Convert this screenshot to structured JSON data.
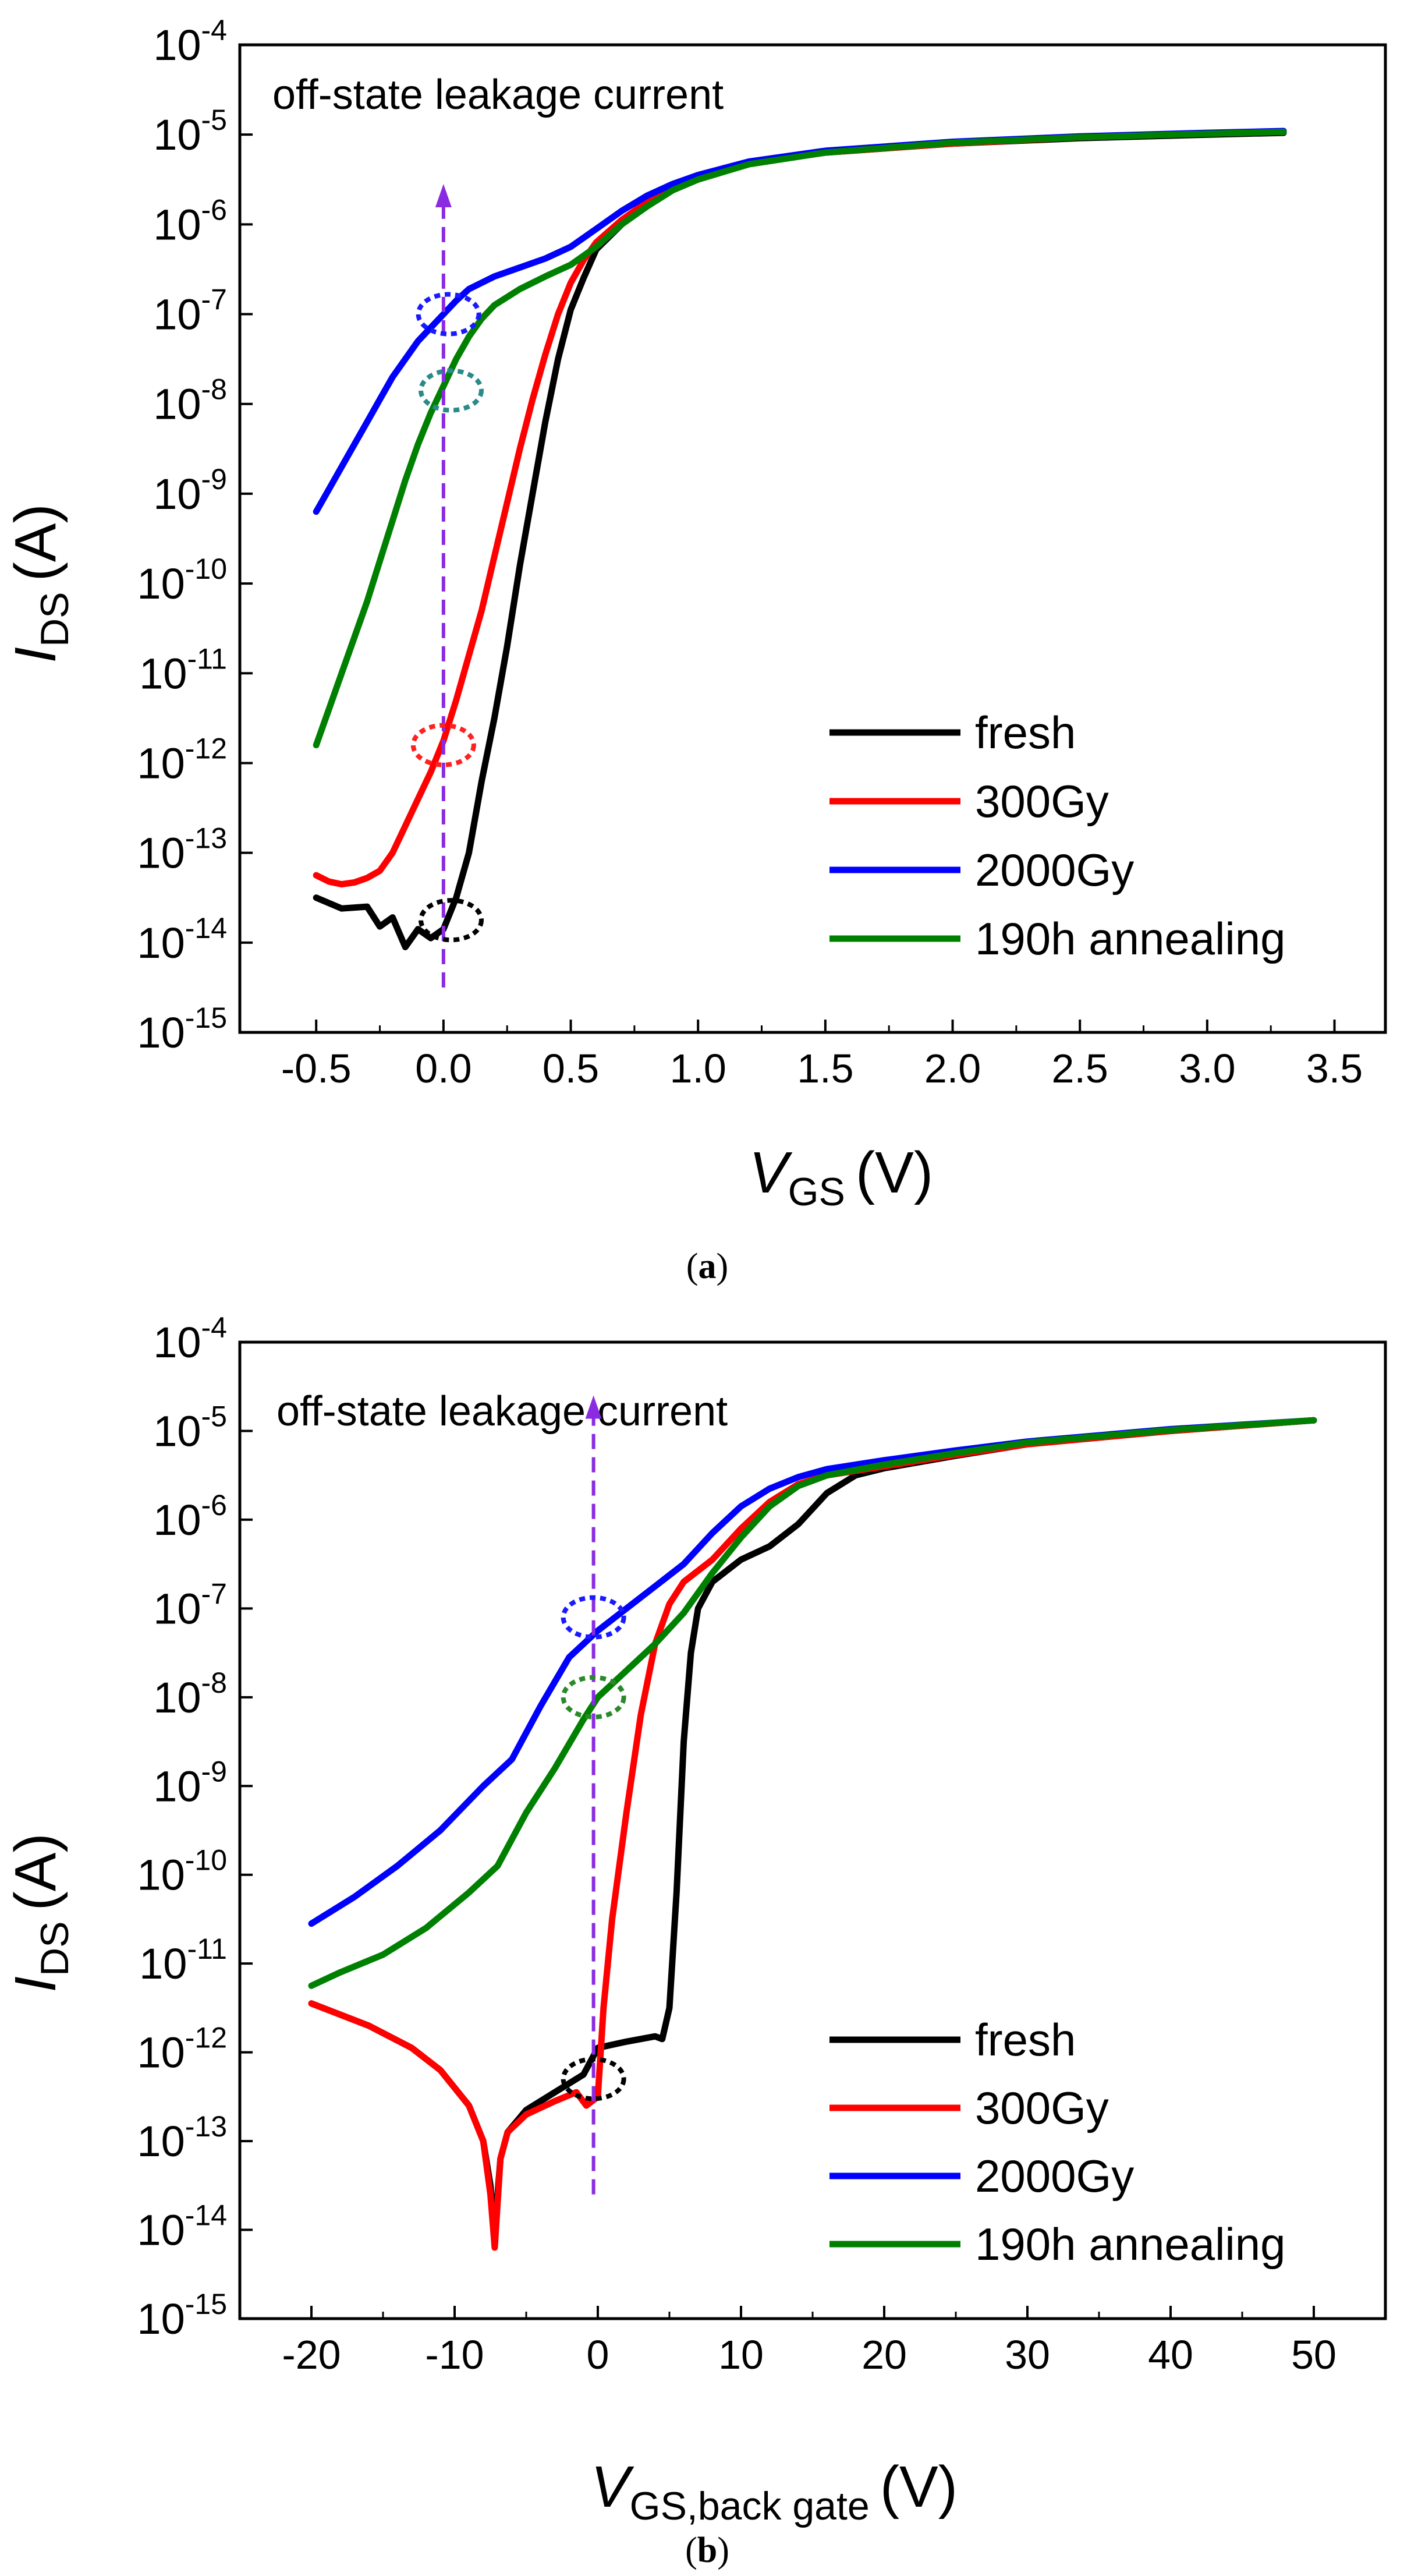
{
  "chart_data": [
    {
      "type": "line",
      "panel": "a",
      "caption": "(a)",
      "caption_letter": "a",
      "xlabel": {
        "main": "V",
        "sub": "GS",
        "unit": "(V)"
      },
      "ylabel": {
        "main": "I",
        "sub": "DS",
        "unit": "(A)"
      },
      "xlim": [
        -0.8,
        3.7
      ],
      "ylim_exp": [
        -15,
        -4
      ],
      "x_ticks": [
        -0.5,
        0.0,
        0.5,
        1.0,
        1.5,
        2.0,
        2.5,
        3.0,
        3.5
      ],
      "x_tick_labels": [
        "-0.5",
        "0.0",
        "0.5",
        "1.0",
        "1.5",
        "2.0",
        "2.5",
        "3.0",
        "3.5"
      ],
      "y_tick_exponents": [
        "-15",
        "-14",
        "-13",
        "-12",
        "-11",
        "-10",
        "-9",
        "-8",
        "-7",
        "-6",
        "-5",
        "-4"
      ],
      "annotation": {
        "text": "off-state leakage current",
        "color": "#8a2be2",
        "arrow_x": 0.0,
        "arrow_from_exp": -14.5,
        "arrow_to_exp": -5.55
      },
      "markers": [
        {
          "series": "2000Gy",
          "x": 0.02,
          "exp": -7.0,
          "color": "#1a1aff"
        },
        {
          "series": "190h annealing",
          "x": 0.03,
          "exp": -7.85,
          "color": "#2a8a8a"
        },
        {
          "series": "300Gy",
          "x": 0.0,
          "exp": -11.8,
          "color": "#ff2020"
        },
        {
          "series": "fresh",
          "x": 0.03,
          "exp": -13.75,
          "color": "#000000"
        }
      ],
      "legend_position": "bottom-right",
      "series": [
        {
          "name": "fresh",
          "color": "#000000",
          "points": [
            [
              -0.5,
              -13.5
            ],
            [
              -0.4,
              -13.62
            ],
            [
              -0.3,
              -13.6
            ],
            [
              -0.25,
              -13.82
            ],
            [
              -0.2,
              -13.72
            ],
            [
              -0.15,
              -14.05
            ],
            [
              -0.1,
              -13.85
            ],
            [
              -0.05,
              -13.95
            ],
            [
              0.0,
              -13.85
            ],
            [
              0.05,
              -13.5
            ],
            [
              0.1,
              -13.0
            ],
            [
              0.15,
              -12.2
            ],
            [
              0.2,
              -11.5
            ],
            [
              0.25,
              -10.7
            ],
            [
              0.3,
              -9.8
            ],
            [
              0.35,
              -9.0
            ],
            [
              0.4,
              -8.2
            ],
            [
              0.45,
              -7.5
            ],
            [
              0.5,
              -6.95
            ],
            [
              0.55,
              -6.6
            ],
            [
              0.6,
              -6.28
            ],
            [
              0.7,
              -6.0
            ],
            [
              0.8,
              -5.78
            ],
            [
              0.9,
              -5.6
            ],
            [
              1.0,
              -5.48
            ],
            [
              1.2,
              -5.32
            ],
            [
              1.5,
              -5.2
            ],
            [
              2.0,
              -5.1
            ],
            [
              2.5,
              -5.04
            ],
            [
              3.0,
              -5.0
            ],
            [
              3.3,
              -4.98
            ]
          ]
        },
        {
          "name": "300Gy",
          "color": "#ff0000",
          "points": [
            [
              -0.5,
              -13.25
            ],
            [
              -0.45,
              -13.32
            ],
            [
              -0.4,
              -13.35
            ],
            [
              -0.35,
              -13.33
            ],
            [
              -0.3,
              -13.28
            ],
            [
              -0.25,
              -13.2
            ],
            [
              -0.2,
              -13.0
            ],
            [
              -0.15,
              -12.7
            ],
            [
              -0.1,
              -12.4
            ],
            [
              -0.05,
              -12.1
            ],
            [
              0.0,
              -11.75
            ],
            [
              0.05,
              -11.3
            ],
            [
              0.1,
              -10.8
            ],
            [
              0.15,
              -10.3
            ],
            [
              0.2,
              -9.7
            ],
            [
              0.25,
              -9.1
            ],
            [
              0.3,
              -8.5
            ],
            [
              0.35,
              -7.95
            ],
            [
              0.4,
              -7.45
            ],
            [
              0.45,
              -7.0
            ],
            [
              0.5,
              -6.65
            ],
            [
              0.55,
              -6.4
            ],
            [
              0.6,
              -6.2
            ],
            [
              0.7,
              -5.95
            ],
            [
              0.8,
              -5.75
            ],
            [
              0.9,
              -5.6
            ],
            [
              1.0,
              -5.48
            ],
            [
              1.2,
              -5.32
            ],
            [
              1.5,
              -5.2
            ],
            [
              2.0,
              -5.1
            ],
            [
              2.5,
              -5.03
            ],
            [
              3.0,
              -4.99
            ],
            [
              3.3,
              -4.97
            ]
          ]
        },
        {
          "name": "2000Gy",
          "color": "#0000ff",
          "points": [
            [
              -0.5,
              -9.2
            ],
            [
              -0.45,
              -8.95
            ],
            [
              -0.4,
              -8.7
            ],
            [
              -0.35,
              -8.45
            ],
            [
              -0.3,
              -8.2
            ],
            [
              -0.25,
              -7.95
            ],
            [
              -0.2,
              -7.7
            ],
            [
              -0.15,
              -7.5
            ],
            [
              -0.1,
              -7.3
            ],
            [
              -0.05,
              -7.15
            ],
            [
              0.0,
              -7.0
            ],
            [
              0.05,
              -6.85
            ],
            [
              0.1,
              -6.72
            ],
            [
              0.2,
              -6.58
            ],
            [
              0.3,
              -6.48
            ],
            [
              0.4,
              -6.38
            ],
            [
              0.5,
              -6.25
            ],
            [
              0.6,
              -6.05
            ],
            [
              0.7,
              -5.85
            ],
            [
              0.8,
              -5.68
            ],
            [
              0.9,
              -5.55
            ],
            [
              1.0,
              -5.45
            ],
            [
              1.2,
              -5.3
            ],
            [
              1.5,
              -5.18
            ],
            [
              2.0,
              -5.08
            ],
            [
              2.5,
              -5.02
            ],
            [
              3.0,
              -4.98
            ],
            [
              3.3,
              -4.96
            ]
          ]
        },
        {
          "name": "190h annealing",
          "color": "#008000",
          "points": [
            [
              -0.5,
              -11.8
            ],
            [
              -0.45,
              -11.4
            ],
            [
              -0.4,
              -11.0
            ],
            [
              -0.35,
              -10.6
            ],
            [
              -0.3,
              -10.2
            ],
            [
              -0.25,
              -9.75
            ],
            [
              -0.2,
              -9.3
            ],
            [
              -0.15,
              -8.85
            ],
            [
              -0.1,
              -8.45
            ],
            [
              -0.05,
              -8.1
            ],
            [
              0.0,
              -7.8
            ],
            [
              0.05,
              -7.5
            ],
            [
              0.1,
              -7.25
            ],
            [
              0.15,
              -7.05
            ],
            [
              0.2,
              -6.9
            ],
            [
              0.3,
              -6.72
            ],
            [
              0.4,
              -6.58
            ],
            [
              0.5,
              -6.45
            ],
            [
              0.6,
              -6.25
            ],
            [
              0.7,
              -6.0
            ],
            [
              0.8,
              -5.8
            ],
            [
              0.9,
              -5.62
            ],
            [
              1.0,
              -5.5
            ],
            [
              1.2,
              -5.33
            ],
            [
              1.5,
              -5.2
            ],
            [
              2.0,
              -5.09
            ],
            [
              2.5,
              -5.03
            ],
            [
              3.0,
              -4.99
            ],
            [
              3.3,
              -4.97
            ]
          ]
        }
      ]
    },
    {
      "type": "line",
      "panel": "b",
      "caption": "(b)",
      "caption_letter": "b",
      "xlabel": {
        "main": "V",
        "sub": "GS,back gate",
        "unit": "(V)"
      },
      "ylabel": {
        "main": "I",
        "sub": "DS",
        "unit": "(A)"
      },
      "xlim": [
        -25,
        55
      ],
      "ylim_exp": [
        -15,
        -4
      ],
      "x_ticks": [
        -20,
        -10,
        0,
        10,
        20,
        30,
        40,
        50
      ],
      "x_tick_labels": [
        "-20",
        "-10",
        "0",
        "10",
        "20",
        "30",
        "40",
        "50"
      ],
      "y_tick_exponents": [
        "-15",
        "-14",
        "-13",
        "-12",
        "-11",
        "-10",
        "-9",
        "-8",
        "-7",
        "-6",
        "-5",
        "-4"
      ],
      "annotation": {
        "text": "off-state leakage current",
        "color": "#8a2be2",
        "arrow_x": -0.3,
        "arrow_from_exp": -13.6,
        "arrow_to_exp": -4.6
      },
      "markers": [
        {
          "series": "2000Gy",
          "x": -0.3,
          "exp": -7.1,
          "color": "#1a1aff"
        },
        {
          "series": "190h annealing",
          "x": -0.3,
          "exp": -8.0,
          "color": "#2a8a2a"
        },
        {
          "series": "fresh",
          "x": -0.3,
          "exp": -12.3,
          "color": "#000000"
        }
      ],
      "legend_position": "bottom-right",
      "series": [
        {
          "name": "fresh",
          "color": "#000000",
          "points": [
            [
              -20,
              -11.45
            ],
            [
              -16,
              -11.7
            ],
            [
              -13,
              -11.95
            ],
            [
              -11,
              -12.2
            ],
            [
              -9,
              -12.6
            ],
            [
              -8,
              -13.0
            ],
            [
              -7.5,
              -13.5
            ],
            [
              -7.2,
              -14.1
            ],
            [
              -7.0,
              -13.6
            ],
            [
              -6.8,
              -13.2
            ],
            [
              -6.3,
              -12.9
            ],
            [
              -5,
              -12.65
            ],
            [
              -3,
              -12.45
            ],
            [
              -1,
              -12.25
            ],
            [
              0,
              -11.95
            ],
            [
              2,
              -11.88
            ],
            [
              4,
              -11.82
            ],
            [
              4.5,
              -11.85
            ],
            [
              5,
              -11.5
            ],
            [
              5.5,
              -10.2
            ],
            [
              6,
              -8.5
            ],
            [
              6.5,
              -7.5
            ],
            [
              7,
              -7.0
            ],
            [
              8,
              -6.7
            ],
            [
              10,
              -6.45
            ],
            [
              12,
              -6.3
            ],
            [
              14,
              -6.05
            ],
            [
              16,
              -5.7
            ],
            [
              18,
              -5.5
            ],
            [
              20,
              -5.42
            ],
            [
              25,
              -5.28
            ],
            [
              30,
              -5.15
            ],
            [
              40,
              -5.0
            ],
            [
              50,
              -4.88
            ]
          ]
        },
        {
          "name": "300Gy",
          "color": "#ff0000",
          "points": [
            [
              -20,
              -11.45
            ],
            [
              -16,
              -11.7
            ],
            [
              -13,
              -11.95
            ],
            [
              -11,
              -12.2
            ],
            [
              -9,
              -12.6
            ],
            [
              -8,
              -13.0
            ],
            [
              -7.5,
              -13.6
            ],
            [
              -7.2,
              -14.2
            ],
            [
              -7.0,
              -13.7
            ],
            [
              -6.8,
              -13.2
            ],
            [
              -6.3,
              -12.9
            ],
            [
              -5,
              -12.7
            ],
            [
              -3,
              -12.55
            ],
            [
              -1.5,
              -12.45
            ],
            [
              -0.8,
              -12.6
            ],
            [
              0,
              -12.5
            ],
            [
              0.4,
              -11.5
            ],
            [
              1,
              -10.5
            ],
            [
              2,
              -9.3
            ],
            [
              3,
              -8.2
            ],
            [
              4,
              -7.4
            ],
            [
              5,
              -6.95
            ],
            [
              6,
              -6.7
            ],
            [
              8,
              -6.45
            ],
            [
              10,
              -6.1
            ],
            [
              12,
              -5.8
            ],
            [
              14,
              -5.6
            ],
            [
              16,
              -5.5
            ],
            [
              20,
              -5.4
            ],
            [
              25,
              -5.27
            ],
            [
              30,
              -5.15
            ],
            [
              40,
              -5.0
            ],
            [
              50,
              -4.88
            ]
          ]
        },
        {
          "name": "2000Gy",
          "color": "#0000ff",
          "points": [
            [
              -20,
              -10.55
            ],
            [
              -17,
              -10.25
            ],
            [
              -14,
              -9.9
            ],
            [
              -11,
              -9.5
            ],
            [
              -8,
              -9.0
            ],
            [
              -6,
              -8.7
            ],
            [
              -4,
              -8.1
            ],
            [
              -2,
              -7.55
            ],
            [
              0,
              -7.25
            ],
            [
              2,
              -7.0
            ],
            [
              4,
              -6.75
            ],
            [
              6,
              -6.5
            ],
            [
              8,
              -6.15
            ],
            [
              10,
              -5.85
            ],
            [
              12,
              -5.65
            ],
            [
              14,
              -5.52
            ],
            [
              16,
              -5.43
            ],
            [
              20,
              -5.33
            ],
            [
              25,
              -5.22
            ],
            [
              30,
              -5.12
            ],
            [
              40,
              -4.98
            ],
            [
              50,
              -4.88
            ]
          ]
        },
        {
          "name": "190h annealing",
          "color": "#008000",
          "points": [
            [
              -20,
              -11.25
            ],
            [
              -18,
              -11.1
            ],
            [
              -15,
              -10.9
            ],
            [
              -12,
              -10.6
            ],
            [
              -9,
              -10.2
            ],
            [
              -7,
              -9.9
            ],
            [
              -5,
              -9.3
            ],
            [
              -3,
              -8.8
            ],
            [
              -1,
              -8.25
            ],
            [
              0,
              -8.0
            ],
            [
              2,
              -7.7
            ],
            [
              4,
              -7.4
            ],
            [
              6,
              -7.05
            ],
            [
              8,
              -6.6
            ],
            [
              10,
              -6.2
            ],
            [
              12,
              -5.85
            ],
            [
              14,
              -5.62
            ],
            [
              16,
              -5.5
            ],
            [
              20,
              -5.38
            ],
            [
              25,
              -5.25
            ],
            [
              30,
              -5.13
            ],
            [
              40,
              -4.99
            ],
            [
              50,
              -4.88
            ]
          ]
        }
      ]
    }
  ],
  "ytick_base": "10"
}
